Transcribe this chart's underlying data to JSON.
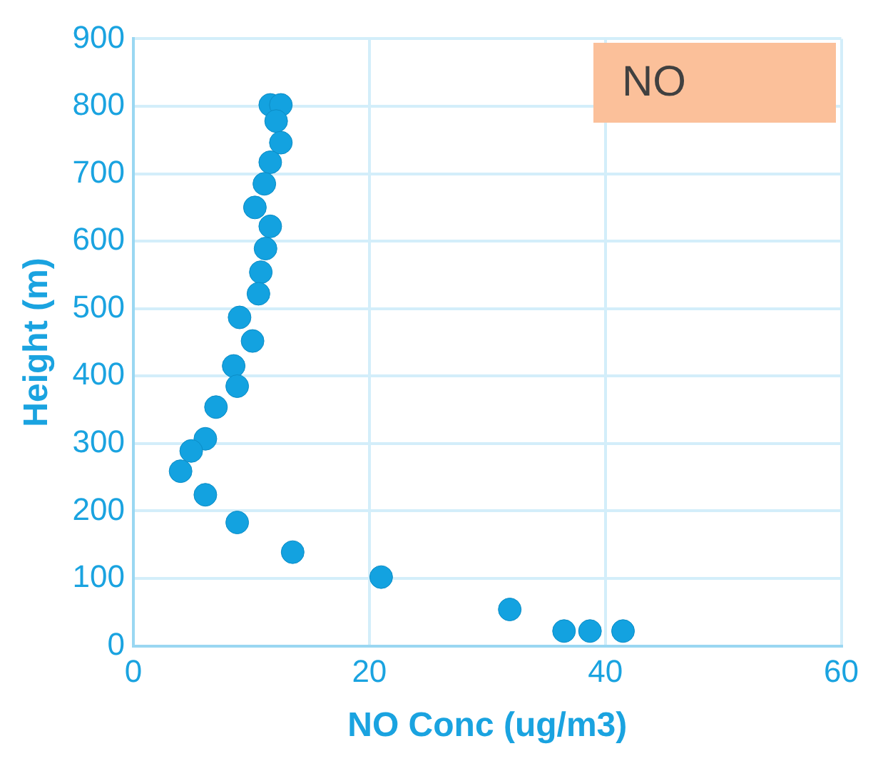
{
  "chart_data": {
    "type": "scatter",
    "xlabel": "NO Conc (ug/m3)",
    "ylabel": "Height (m)",
    "annotations": [
      "NO"
    ],
    "x": [
      11.6,
      12.5,
      12.1,
      12.5,
      11.6,
      11.1,
      10.3,
      11.6,
      11.2,
      10.8,
      10.6,
      9.0,
      10.1,
      8.5,
      8.8,
      7.0,
      6.1,
      4.9,
      4.0,
      6.1,
      8.8,
      13.5,
      21.0,
      31.9,
      36.5,
      38.7,
      41.5
    ],
    "series": [
      {
        "color": "#13a2e0",
        "values": [
          802,
          802,
          778,
          746,
          717,
          685,
          650,
          622,
          589,
          554,
          522,
          487,
          452,
          415,
          385,
          354,
          307,
          289,
          259,
          224,
          183,
          139,
          102,
          54,
          22,
          22,
          22
        ]
      }
    ],
    "xlim": [
      0,
      60
    ],
    "xticks": [
      0,
      20,
      40,
      60
    ],
    "ylim": [
      0,
      900
    ],
    "yticks": [
      0,
      100,
      200,
      300,
      400,
      500,
      600,
      700,
      800,
      900
    ],
    "grid": true,
    "marker": "circle",
    "legend": false
  }
}
